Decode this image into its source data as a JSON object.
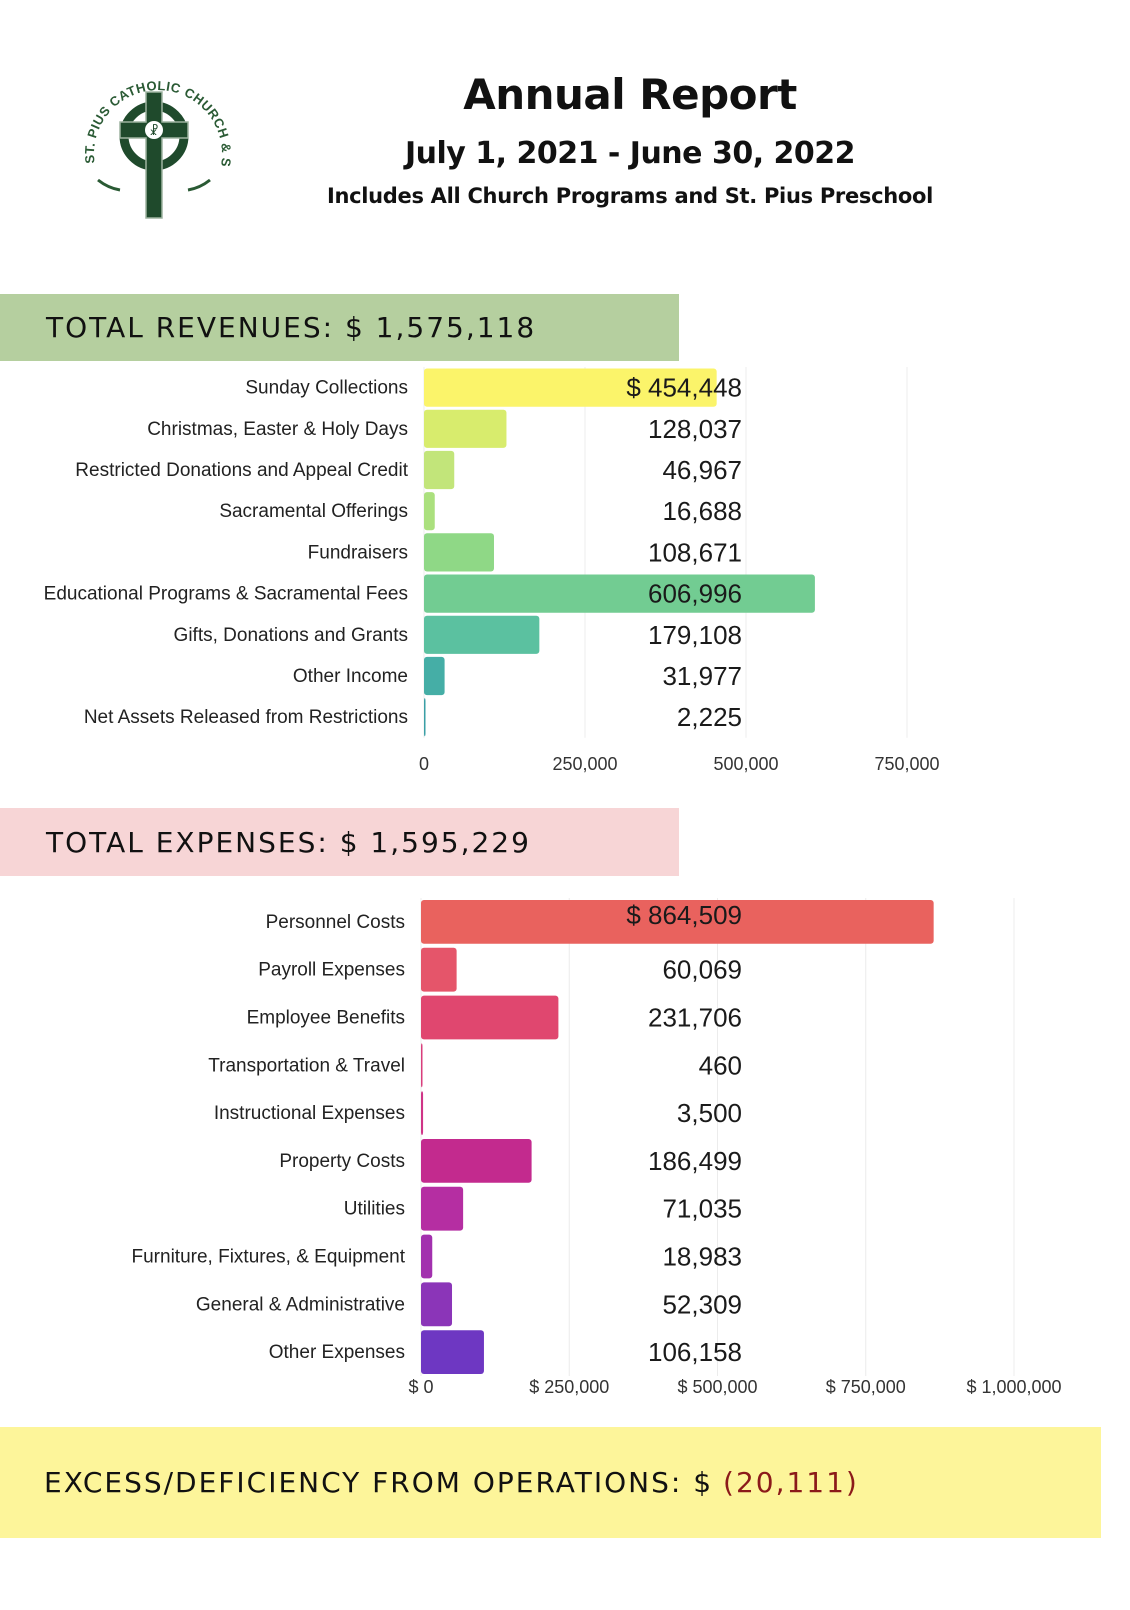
{
  "header": {
    "logo_text": "ST. PIUS CATHOLIC CHURCH & SCHOOL",
    "title": "Annual Report",
    "period": "July 1, 2021 - June 30, 2022",
    "subtitle": "Includes All Church Programs and St. Pius Preschool"
  },
  "revenues": {
    "label": "TOTAL REVENUES: $ 1,575,118"
  },
  "expenses": {
    "label": "TOTAL EXPENSES: $ 1,595,229"
  },
  "footer": {
    "label": "EXCESS/DEFICIENCY FROM OPERATIONS: $",
    "value": "(20,111)",
    "value_color": "#8b1a1a"
  },
  "chart_data": [
    {
      "type": "bar",
      "orientation": "horizontal",
      "categories": [
        "Sunday Collections",
        "Christmas, Easter & Holy Days",
        "Restricted Donations and Appeal Credit",
        "Sacramental Offerings",
        "Fundraisers",
        "Educational Programs & Sacramental Fees",
        "Gifts, Donations and Grants",
        "Other Income",
        "Net Assets Released from Restrictions"
      ],
      "values": [
        454448,
        128037,
        46967,
        16688,
        108671,
        606996,
        179108,
        31977,
        2225
      ],
      "value_labels": [
        "$ 454,448",
        "128,037",
        "46,967",
        "16,688",
        "108,671",
        "606,996",
        "179,108",
        "31,977",
        "2,225"
      ],
      "colors": [
        "#fbf46a",
        "#d8ec6d",
        "#c2e57a",
        "#abe07e",
        "#8fd886",
        "#72cc92",
        "#5bc1a0",
        "#45aea6",
        "#3a9fa6"
      ],
      "xlim": [
        0,
        750000
      ],
      "xticks": [
        0,
        250000,
        500000,
        750000
      ],
      "xtick_labels": [
        "0",
        "250,000",
        "500,000",
        "750,000"
      ],
      "grid": true
    },
    {
      "type": "bar",
      "orientation": "horizontal",
      "categories": [
        "Personnel Costs",
        "Payroll Expenses",
        "Employee Benefits",
        "Transportation & Travel",
        "Instructional Expenses",
        "Property Costs",
        "Utilities",
        "Furniture, Fixtures, & Equipment",
        "General & Administrative",
        "Other Expenses"
      ],
      "values": [
        864509,
        60069,
        231706,
        460,
        3500,
        186499,
        71035,
        18983,
        52309,
        106158
      ],
      "value_labels": [
        "$ 864,509",
        "60,069",
        "231,706",
        "460",
        "3,500",
        "186,499",
        "71,035",
        "18,983",
        "52,309",
        "106,158"
      ],
      "colors": [
        "#e9625e",
        "#e5556a",
        "#e0476f",
        "#d93e7c",
        "#cf3487",
        "#c32a8e",
        "#b52ea2",
        "#a230ae",
        "#8b35b8",
        "#6e37c2"
      ],
      "xlim": [
        0,
        1000000
      ],
      "xticks": [
        0,
        250000,
        500000,
        750000,
        1000000
      ],
      "xtick_labels": [
        "$ 0",
        "$ 250,000",
        "$ 500,000",
        "$ 750,000",
        "$ 1,000,000"
      ],
      "grid": true
    }
  ]
}
